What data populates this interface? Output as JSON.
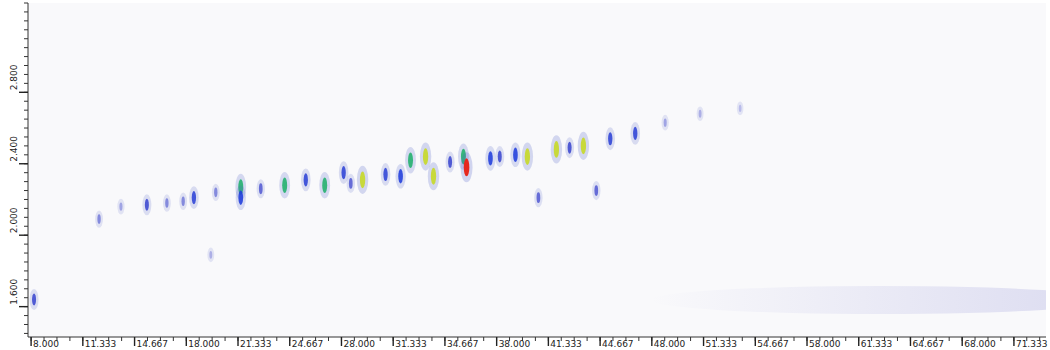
{
  "chart_data": {
    "type": "scatter",
    "xlim": [
      7.8,
      73.4
    ],
    "ylim": [
      1.43,
      3.3
    ],
    "xticks": [
      {
        "value": 8.0,
        "label": "8.000"
      },
      {
        "value": 11.333,
        "label": "11.333"
      },
      {
        "value": 14.667,
        "label": "14.667"
      },
      {
        "value": 18.0,
        "label": "18.000"
      },
      {
        "value": 21.333,
        "label": "21.333"
      },
      {
        "value": 24.667,
        "label": "24.667"
      },
      {
        "value": 28.0,
        "label": "28.000"
      },
      {
        "value": 31.333,
        "label": "31.333"
      },
      {
        "value": 34.667,
        "label": "34.667"
      },
      {
        "value": 38.0,
        "label": "38.000"
      },
      {
        "value": 41.333,
        "label": "41.333"
      },
      {
        "value": 44.667,
        "label": "44.667"
      },
      {
        "value": 48.0,
        "label": "48.000"
      },
      {
        "value": 51.333,
        "label": "51.333"
      },
      {
        "value": 54.667,
        "label": "54.667"
      },
      {
        "value": 58.0,
        "label": "58.000"
      },
      {
        "value": 61.333,
        "label": "61.333"
      },
      {
        "value": 64.667,
        "label": "64.667"
      },
      {
        "value": 68.0,
        "label": "68.000"
      },
      {
        "value": 71.333,
        "label": "71.333"
      }
    ],
    "yticks": [
      {
        "value": 1.6,
        "label": "1.600"
      },
      {
        "value": 2.0,
        "label": "2.000"
      },
      {
        "value": 2.4,
        "label": "2.400"
      },
      {
        "value": 2.8,
        "label": "2.800"
      }
    ],
    "x": [
      8.19,
      12.38,
      13.79,
      15.46,
      16.75,
      17.8,
      18.49,
      19.58,
      19.9,
      21.51,
      21.51,
      22.8,
      24.34,
      25.7,
      26.92,
      28.14,
      28.6,
      29.36,
      30.84,
      31.81,
      32.45,
      33.42,
      33.93,
      35.0,
      35.86,
      36.06,
      37.6,
      38.2,
      39.21,
      39.98,
      40.69,
      41.85,
      42.7,
      43.59,
      44.42,
      45.32,
      46.93,
      48.86,
      51.11,
      53.69
    ],
    "values": [
      1.64,
      2.09,
      2.16,
      2.17,
      2.18,
      2.19,
      2.21,
      1.89,
      2.24,
      2.27,
      2.21,
      2.26,
      2.28,
      2.31,
      2.28,
      2.35,
      2.29,
      2.31,
      2.34,
      2.33,
      2.42,
      2.44,
      2.33,
      2.41,
      2.44,
      2.38,
      2.43,
      2.44,
      2.45,
      2.44,
      2.21,
      2.48,
      2.49,
      2.5,
      2.25,
      2.54,
      2.57,
      2.63,
      2.68,
      2.71
    ],
    "intensity": [
      0.5,
      0.3,
      0.2,
      0.5,
      0.3,
      0.3,
      0.6,
      0.15,
      0.3,
      0.8,
      0.7,
      0.4,
      0.8,
      0.6,
      0.8,
      0.6,
      0.4,
      0.9,
      0.6,
      0.7,
      0.8,
      0.9,
      0.9,
      0.5,
      0.8,
      1.0,
      0.7,
      0.5,
      0.7,
      0.9,
      0.4,
      0.9,
      0.5,
      0.9,
      0.4,
      0.6,
      0.6,
      0.2,
      0.15,
      0.1
    ]
  }
}
